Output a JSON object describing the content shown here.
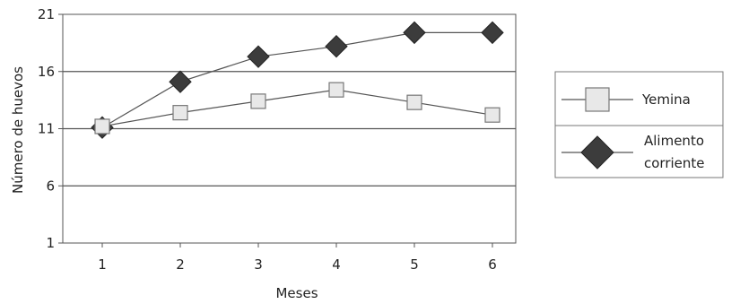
{
  "chart_data": {
    "type": "line",
    "xlabel": "Meses",
    "ylabel": "Número de huevos",
    "x": [
      1,
      2,
      3,
      4,
      5,
      6
    ],
    "ylim": [
      1,
      21
    ],
    "yticks": [
      1,
      6,
      11,
      16,
      21
    ],
    "grid": "horizontal",
    "legend_position": "right",
    "series": [
      {
        "name": "Yemina",
        "marker": "square",
        "color": "#e8e8e8",
        "values": [
          11.2,
          12.4,
          13.4,
          14.4,
          13.3,
          12.2
        ]
      },
      {
        "name": [
          "Alimento",
          "corriente"
        ],
        "marker": "diamond",
        "color": "#3c3c3c",
        "values": [
          11.1,
          15.1,
          17.3,
          18.2,
          19.4,
          19.4
        ]
      }
    ]
  }
}
